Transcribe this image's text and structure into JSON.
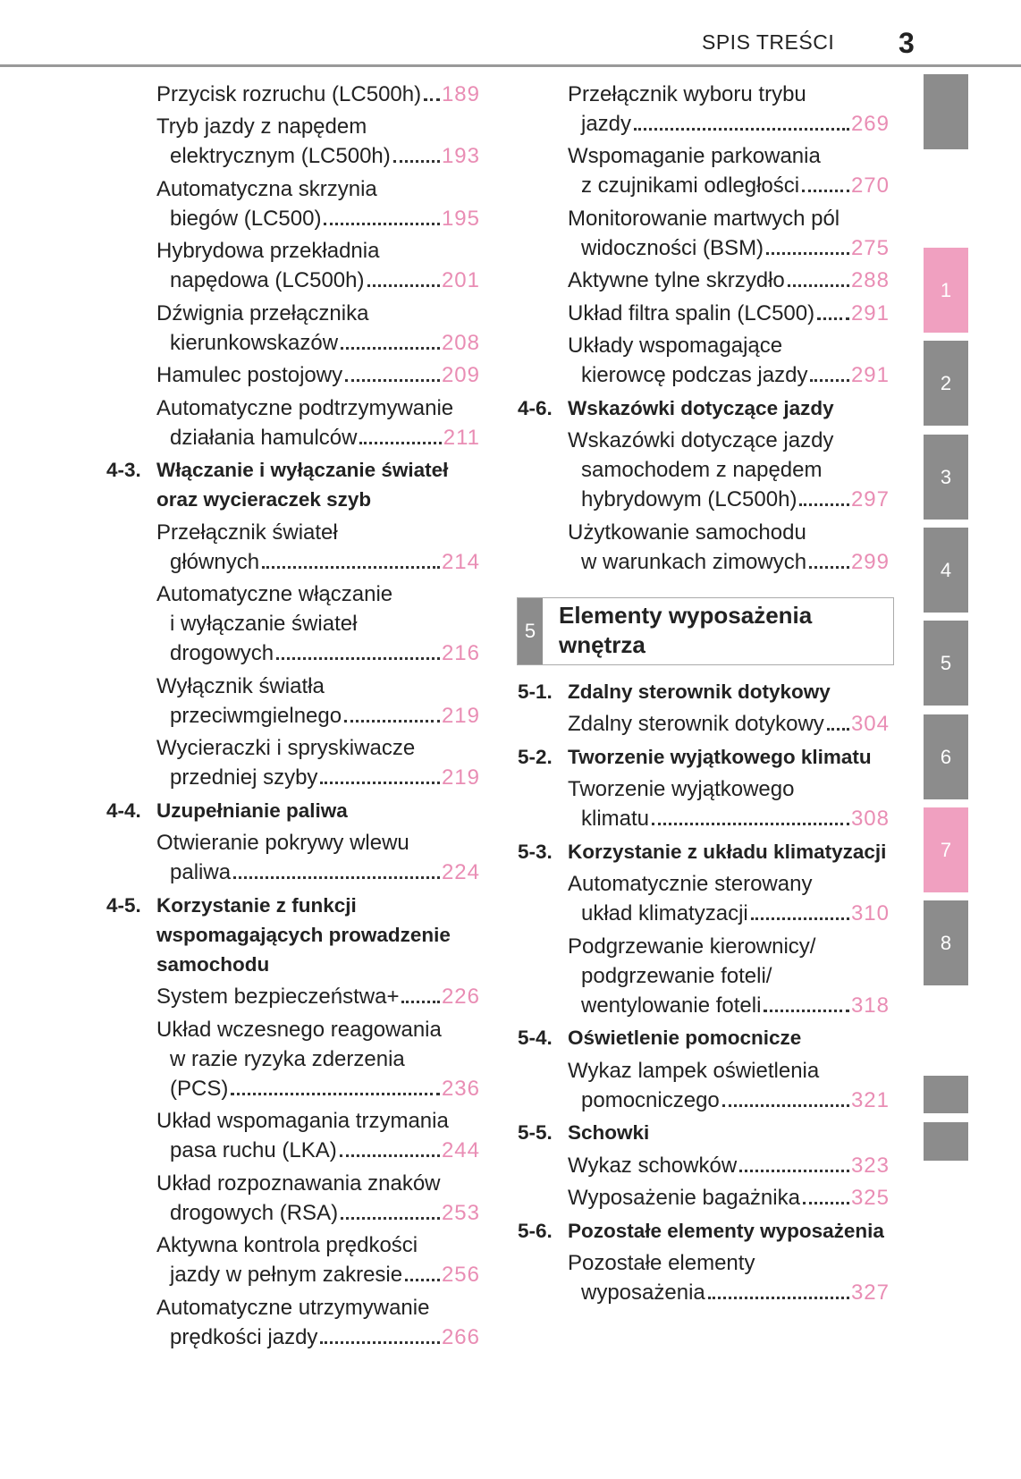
{
  "header": {
    "section": "SPIS TREŚCI",
    "page": "3"
  },
  "left": [
    {
      "lines": [
        "Przycisk rozruchu (LC500h)"
      ],
      "page": "189"
    },
    {
      "lines": [
        "Tryb jazdy z napędem",
        "elektrycznym (LC500h)"
      ],
      "page": "193"
    },
    {
      "lines": [
        "Automatyczna skrzynia",
        "biegów (LC500)"
      ],
      "page": "195"
    },
    {
      "lines": [
        "Hybrydowa przekładnia",
        "napędowa (LC500h)"
      ],
      "page": "201"
    },
    {
      "lines": [
        "Dźwignia przełącznika",
        "kierunkowskazów"
      ],
      "page": "208"
    },
    {
      "lines": [
        "Hamulec postojowy"
      ],
      "page": "209"
    },
    {
      "lines": [
        "Automatyczne podtrzymywanie",
        "działania hamulców"
      ],
      "page": "211"
    },
    {
      "num": "4-3.",
      "lines": [
        "Włączanie i wyłączanie świateł",
        "oraz wycieraczek szyb"
      ]
    },
    {
      "lines": [
        "Przełącznik świateł",
        "głównych"
      ],
      "page": "214"
    },
    {
      "lines": [
        "Automatyczne włączanie",
        "i wyłączanie świateł",
        "drogowych"
      ],
      "page": "216"
    },
    {
      "lines": [
        "Wyłącznik światła",
        "przeciwmgielnego"
      ],
      "page": "219"
    },
    {
      "lines": [
        "Wycieraczki i spryskiwacze",
        "przedniej szyby"
      ],
      "page": "219"
    },
    {
      "num": "4-4.",
      "lines": [
        "Uzupełnianie paliwa"
      ]
    },
    {
      "lines": [
        "Otwieranie pokrywy wlewu",
        "paliwa"
      ],
      "page": "224"
    },
    {
      "num": "4-5.",
      "lines": [
        "Korzystanie z funkcji",
        "wspomagających prowadzenie",
        "samochodu"
      ]
    },
    {
      "lines": [
        "System bezpieczeństwa+"
      ],
      "page": "226"
    },
    {
      "lines": [
        "Układ wczesnego reagowania",
        "w razie ryzyka zderzenia",
        "(PCS)"
      ],
      "page": "236"
    },
    {
      "lines": [
        "Układ wspomagania trzymania",
        "pasa ruchu (LKA)"
      ],
      "page": "244"
    },
    {
      "lines": [
        "Układ rozpoznawania znaków",
        "drogowych (RSA)"
      ],
      "page": "253"
    },
    {
      "lines": [
        "Aktywna kontrola prędkości",
        "jazdy w pełnym zakresie"
      ],
      "page": "256"
    },
    {
      "lines": [
        "Automatyczne utrzymywanie",
        "prędkości jazdy"
      ],
      "page": "266"
    }
  ],
  "right": [
    {
      "lines": [
        "Przełącznik wyboru trybu",
        "jazdy"
      ],
      "page": "269"
    },
    {
      "lines": [
        "Wspomaganie parkowania",
        "z czujnikami odległości"
      ],
      "page": "270"
    },
    {
      "lines": [
        "Monitorowanie martwych pól",
        "widoczności (BSM)"
      ],
      "page": "275"
    },
    {
      "lines": [
        "Aktywne tylne skrzydło"
      ],
      "page": "288"
    },
    {
      "lines": [
        "Układ filtra spalin (LC500)"
      ],
      "page": "291"
    },
    {
      "lines": [
        "Układy wspomagające",
        "kierowcę podczas jazdy"
      ],
      "page": "291"
    },
    {
      "num": "4-6.",
      "lines": [
        "Wskazówki dotyczące jazdy"
      ]
    },
    {
      "lines": [
        "Wskazówki dotyczące jazdy",
        "samochodem z napędem",
        "hybrydowym (LC500h)"
      ],
      "page": "297"
    },
    {
      "lines": [
        "Użytkowanie samochodu",
        "w warunkach zimowych"
      ],
      "page": "299"
    }
  ],
  "chapter": {
    "number": "5",
    "title": [
      "Elementy wyposażenia",
      "wnętrza"
    ]
  },
  "right2": [
    {
      "num": "5-1.",
      "lines": [
        "Zdalny sterownik dotykowy"
      ]
    },
    {
      "lines": [
        "Zdalny sterownik dotykowy"
      ],
      "page": "304"
    },
    {
      "num": "5-2.",
      "lines": [
        "Tworzenie wyjątkowego klimatu"
      ]
    },
    {
      "lines": [
        "Tworzenie wyjątkowego",
        "klimatu"
      ],
      "page": "308"
    },
    {
      "num": "5-3.",
      "lines": [
        "Korzystanie z układu klimatyzacji"
      ]
    },
    {
      "lines": [
        "Automatycznie sterowany",
        "układ klimatyzacji"
      ],
      "page": "310"
    },
    {
      "lines": [
        "Podgrzewanie kierownicy/",
        "podgrzewanie foteli/",
        "wentylowanie foteli"
      ],
      "page": "318"
    },
    {
      "num": "5-4.",
      "lines": [
        "Oświetlenie pomocnicze"
      ]
    },
    {
      "lines": [
        "Wykaz lampek oświetlenia",
        "pomocniczego"
      ],
      "page": "321"
    },
    {
      "num": "5-5.",
      "lines": [
        "Schowki"
      ]
    },
    {
      "lines": [
        "Wykaz schowków"
      ],
      "page": "323"
    },
    {
      "lines": [
        "Wyposażenie bagażnika"
      ],
      "page": "325"
    },
    {
      "num": "5-6.",
      "lines": [
        "Pozostałe elementy wyposażenia"
      ]
    },
    {
      "lines": [
        "Pozostałe elementy",
        "wyposażenia"
      ],
      "page": "327"
    }
  ],
  "tabs": [
    "1",
    "2",
    "3",
    "4",
    "5",
    "6",
    "7",
    "8"
  ]
}
